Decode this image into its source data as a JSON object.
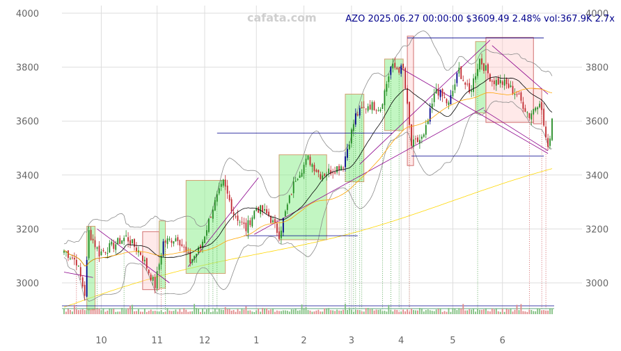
{
  "chart_data": {
    "type": "candlestick",
    "title": "AZO 2025.06.27 00:00:00 $3609.49 2.48% vol:367.9K 2.7x",
    "watermark": "cafata.com",
    "ylim": [
      2880,
      4020
    ],
    "yticks": [
      3000,
      3200,
      3400,
      3600,
      3800,
      4000
    ],
    "x_range": [
      0,
      236
    ],
    "xticks": [
      {
        "label": "10",
        "x": 18
      },
      {
        "label": "11",
        "x": 45
      },
      {
        "label": "12",
        "x": 68
      },
      {
        "label": "1",
        "x": 93
      },
      {
        "label": "2",
        "x": 116
      },
      {
        "label": "3",
        "x": 139
      },
      {
        "label": "4",
        "x": 163
      },
      {
        "label": "5",
        "x": 188
      },
      {
        "label": "6",
        "x": 212
      }
    ],
    "colors": {
      "up": "#228b22",
      "down": "#c0282d",
      "extreme_up": "#00008b",
      "grid": "#dddddd",
      "ma_short": "#000000",
      "ma_mid": "#ffa500",
      "ma_long": "#ffd700",
      "band": "#8a8a8a",
      "trend": "#8b008b",
      "level": "#00008b",
      "box_up": "#90ee90",
      "box_down": "#ffc0c0"
    },
    "price_anchors": [
      [
        0,
        3120
      ],
      [
        6,
        3080
      ],
      [
        10,
        2960
      ],
      [
        12,
        3190
      ],
      [
        17,
        3110
      ],
      [
        24,
        3140
      ],
      [
        30,
        3170
      ],
      [
        37,
        3110
      ],
      [
        44,
        2990
      ],
      [
        48,
        3150
      ],
      [
        55,
        3170
      ],
      [
        61,
        3080
      ],
      [
        66,
        3130
      ],
      [
        72,
        3280
      ],
      [
        77,
        3370
      ],
      [
        82,
        3260
      ],
      [
        88,
        3200
      ],
      [
        93,
        3280
      ],
      [
        99,
        3250
      ],
      [
        104,
        3180
      ],
      [
        112,
        3390
      ],
      [
        118,
        3460
      ],
      [
        124,
        3400
      ],
      [
        130,
        3420
      ],
      [
        135,
        3440
      ],
      [
        141,
        3620
      ],
      [
        147,
        3660
      ],
      [
        153,
        3650
      ],
      [
        158,
        3800
      ],
      [
        164,
        3790
      ],
      [
        168,
        3510
      ],
      [
        174,
        3540
      ],
      [
        180,
        3720
      ],
      [
        186,
        3660
      ],
      [
        191,
        3790
      ],
      [
        196,
        3700
      ],
      [
        201,
        3830
      ],
      [
        207,
        3750
      ],
      [
        213,
        3740
      ],
      [
        219,
        3700
      ],
      [
        225,
        3620
      ],
      [
        230,
        3680
      ],
      [
        234,
        3490
      ],
      [
        236,
        3609
      ]
    ],
    "boxes": [
      {
        "x0": 11,
        "x1": 15,
        "y0": 2900,
        "y1": 3210,
        "kind": "up"
      },
      {
        "x0": 38,
        "x1": 46,
        "y0": 2975,
        "y1": 3190,
        "kind": "down"
      },
      {
        "x0": 46,
        "x1": 49,
        "y0": 2980,
        "y1": 3230,
        "kind": "up"
      },
      {
        "x0": 59,
        "x1": 78,
        "y0": 3035,
        "y1": 3380,
        "kind": "up"
      },
      {
        "x0": 104,
        "x1": 127,
        "y0": 3160,
        "y1": 3475,
        "kind": "up"
      },
      {
        "x0": 136,
        "x1": 145,
        "y0": 3375,
        "y1": 3700,
        "kind": "up"
      },
      {
        "x0": 155,
        "x1": 164,
        "y0": 3565,
        "y1": 3830,
        "kind": "up"
      },
      {
        "x0": 166,
        "x1": 169,
        "y0": 3435,
        "y1": 3915,
        "kind": "down"
      },
      {
        "x0": 199,
        "x1": 204,
        "y0": 3630,
        "y1": 3895,
        "kind": "up"
      },
      {
        "x0": 204,
        "x1": 227,
        "y0": 3595,
        "y1": 3910,
        "kind": "down"
      },
      {
        "x0": 227,
        "x1": 231,
        "y0": 3590,
        "y1": 3720,
        "kind": "down"
      }
    ],
    "levels": [
      {
        "x0": 74,
        "x1": 159,
        "y": 3555
      },
      {
        "x0": 87,
        "x1": 142,
        "y": 3175
      },
      {
        "x0": 166,
        "x1": 232,
        "y": 3908
      },
      {
        "x0": 168,
        "x1": 232,
        "y": 3470
      }
    ],
    "trendlines": [
      {
        "x0": 16,
        "x1": 51,
        "y0": 3200,
        "y1": 3000
      },
      {
        "x0": 60,
        "x1": 94,
        "y0": 3060,
        "y1": 3390
      },
      {
        "x0": 92,
        "x1": 203,
        "y0": 3180,
        "y1": 3650
      },
      {
        "x0": 143,
        "x1": 206,
        "y0": 3440,
        "y1": 3900
      },
      {
        "x0": 162,
        "x1": 234,
        "y0": 3800,
        "y1": 3480
      },
      {
        "x0": 203,
        "x1": 234,
        "y0": 3640,
        "y1": 3490
      },
      {
        "x0": 207,
        "x1": 234,
        "y0": 3880,
        "y1": 3700
      },
      {
        "x0": 0,
        "x1": 14,
        "y0": 3040,
        "y1": 3020
      }
    ],
    "markers_green": [
      16,
      29,
      49,
      70,
      72,
      74,
      117,
      136,
      138,
      140,
      141,
      143,
      144,
      154,
      158,
      162,
      167,
      200
    ],
    "markers_red": [
      6,
      47,
      167,
      225,
      231,
      233
    ]
  }
}
